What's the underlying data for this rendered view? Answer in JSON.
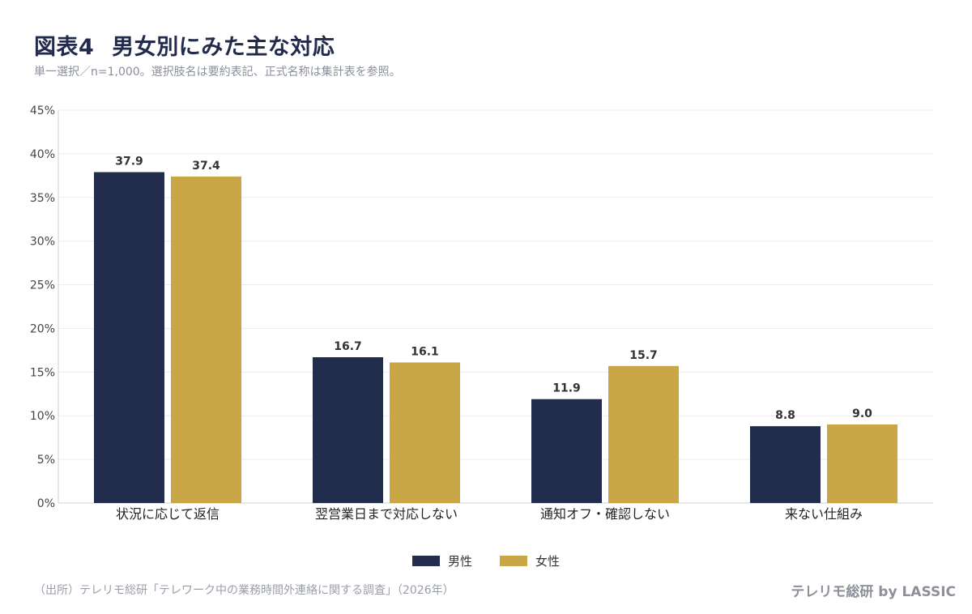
{
  "header": {
    "title_prefix": "図表4",
    "title_main": "男女別にみた主な対応",
    "subtitle": "単一選択／n=1,000。選択肢名は要約表記、正式名称は集計表を参照。"
  },
  "footer": {
    "source": "（出所）テレリモ総研「テレワーク中の業務時間外連絡に関する調査」（2026年）",
    "brand": "テレリモ総研 by LASSIC"
  },
  "colors": {
    "male": "#222c4c",
    "female": "#c9a646",
    "grid": "#ececf0",
    "axis": "#cfd0d6"
  },
  "chart_data": {
    "type": "bar",
    "categories": [
      "状況に応じて返信",
      "翌営業日まで対応しない",
      "通知オフ・確認しない",
      "来ない仕組み"
    ],
    "series": [
      {
        "name": "男性",
        "values": [
          37.9,
          16.7,
          11.9,
          8.8
        ],
        "labels": [
          "37.9",
          "16.7",
          "11.9",
          "8.8"
        ]
      },
      {
        "name": "女性",
        "values": [
          37.4,
          16.1,
          15.7,
          9.0
        ],
        "labels": [
          "37.4",
          "16.1",
          "15.7",
          "9.0"
        ]
      }
    ],
    "ylim": [
      0,
      45
    ],
    "yticks": [
      0,
      5,
      10,
      15,
      20,
      25,
      30,
      35,
      40,
      45
    ],
    "ytick_labels": [
      "0%",
      "5%",
      "10%",
      "15%",
      "20%",
      "25%",
      "30%",
      "35%",
      "40%",
      "45%"
    ],
    "grid": true,
    "legend_position": "bottom-center"
  }
}
